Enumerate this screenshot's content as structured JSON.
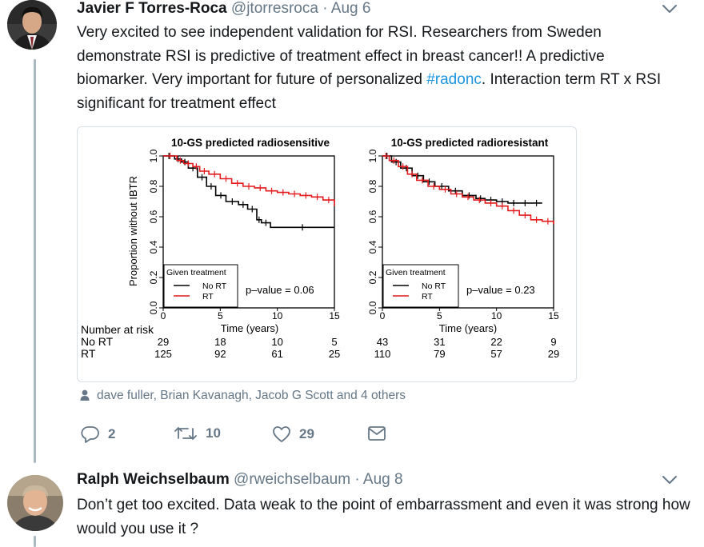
{
  "tweet1": {
    "author_name": "Javier F Torres-Roca",
    "handle": "@jtorresroca",
    "separator": "·",
    "date": "Aug 6",
    "text_before_hashtag": "Very excited to see independent validation for RSI. Researchers from Sweden demonstrate RSI is predictive of treatment effect in breast cancer!! A predictive biomarker. Very important for future of personalized ",
    "hashtag": "#radonc",
    "text_after_hashtag": ". Interaction term RT x RSI significant for treatment effect",
    "likers": "dave fuller, Brian Kavanagh, Jacob G Scott and 4 others",
    "actions": {
      "replies": "2",
      "retweets": "10",
      "likes": "29"
    }
  },
  "tweet2": {
    "author_name": "Ralph Weichselbaum",
    "handle": "@rweichselbaum",
    "separator": "·",
    "date": "Aug 8",
    "text": "Don’t get too excited. Data weak to the point of embarrassment and even it was strong how would you use it ?"
  },
  "colors": {
    "link": "#1b95e0",
    "muted": "#657786",
    "thread": "#aab8c2",
    "no_rt": "#000000",
    "rt": "#e41a1c"
  },
  "chart_data": [
    {
      "type": "line",
      "title": "10-GS predicted radiosensitive",
      "xlabel": "Time (years)",
      "ylabel": "Proportion without IBTR",
      "xlim": [
        0,
        15
      ],
      "ylim": [
        0,
        1
      ],
      "x_ticks": [
        "0",
        "5",
        "10",
        "15"
      ],
      "y_ticks": [
        "0.0",
        "0.2",
        "0.4",
        "0.6",
        "0.8",
        "1.0"
      ],
      "legend_title": "Given treatment",
      "series": [
        {
          "name": "No RT",
          "color": "#000000",
          "x": [
            0,
            1,
            1.6,
            2.2,
            3,
            3.8,
            4.6,
            5.5,
            6.6,
            7.4,
            8.2,
            8.6,
            9.4,
            15
          ],
          "y": [
            1,
            0.98,
            0.96,
            0.92,
            0.86,
            0.8,
            0.74,
            0.7,
            0.68,
            0.65,
            0.58,
            0.56,
            0.53,
            0.53
          ]
        },
        {
          "name": "RT",
          "color": "#e41a1c",
          "x": [
            0,
            1.2,
            1.8,
            2.6,
            3.2,
            4,
            5,
            6,
            7,
            8,
            9,
            10,
            11,
            12,
            13,
            14,
            15
          ],
          "y": [
            1,
            0.97,
            0.95,
            0.93,
            0.9,
            0.88,
            0.85,
            0.82,
            0.8,
            0.79,
            0.77,
            0.76,
            0.75,
            0.74,
            0.73,
            0.71,
            0.67
          ]
        }
      ],
      "p_value": "p–value = 0.06",
      "risk_table": {
        "heading": "Number at risk",
        "rows": [
          {
            "label": "No RT",
            "values": [
              "29",
              "18",
              "10",
              "5"
            ]
          },
          {
            "label": "RT",
            "values": [
              "125",
              "92",
              "61",
              "25"
            ]
          }
        ]
      }
    },
    {
      "type": "line",
      "title": "10-GS predicted radioresistant",
      "xlabel": "Time (years)",
      "xlim": [
        0,
        15
      ],
      "ylim": [
        0,
        1
      ],
      "x_ticks": [
        "0",
        "5",
        "10",
        "15"
      ],
      "y_ticks": [
        "0.0",
        "0.2",
        "0.4",
        "0.6",
        "0.8",
        "1.0"
      ],
      "legend_title": "Given treatment",
      "series": [
        {
          "name": "No RT",
          "color": "#000000",
          "x": [
            0,
            0.8,
            1.6,
            2.6,
            3.6,
            4.6,
            5.8,
            7,
            8.2,
            9,
            10,
            11,
            12,
            13,
            14
          ],
          "y": [
            1,
            0.96,
            0.92,
            0.87,
            0.83,
            0.8,
            0.77,
            0.74,
            0.72,
            0.71,
            0.7,
            0.69,
            0.69,
            0.69,
            0.69
          ]
        },
        {
          "name": "RT",
          "color": "#e41a1c",
          "x": [
            0,
            0.6,
            1.4,
            2.2,
            3,
            4,
            5,
            6,
            7,
            8,
            9,
            10,
            11,
            12,
            13,
            14,
            15
          ],
          "y": [
            1,
            0.97,
            0.93,
            0.88,
            0.84,
            0.8,
            0.78,
            0.75,
            0.73,
            0.71,
            0.69,
            0.67,
            0.64,
            0.61,
            0.58,
            0.57,
            0.55
          ]
        }
      ],
      "p_value": "p–value = 0.23",
      "risk_table": {
        "rows": [
          {
            "label": "No RT",
            "values": [
              "43",
              "31",
              "22",
              "9"
            ]
          },
          {
            "label": "RT",
            "values": [
              "110",
              "79",
              "57",
              "29"
            ]
          }
        ]
      }
    }
  ]
}
